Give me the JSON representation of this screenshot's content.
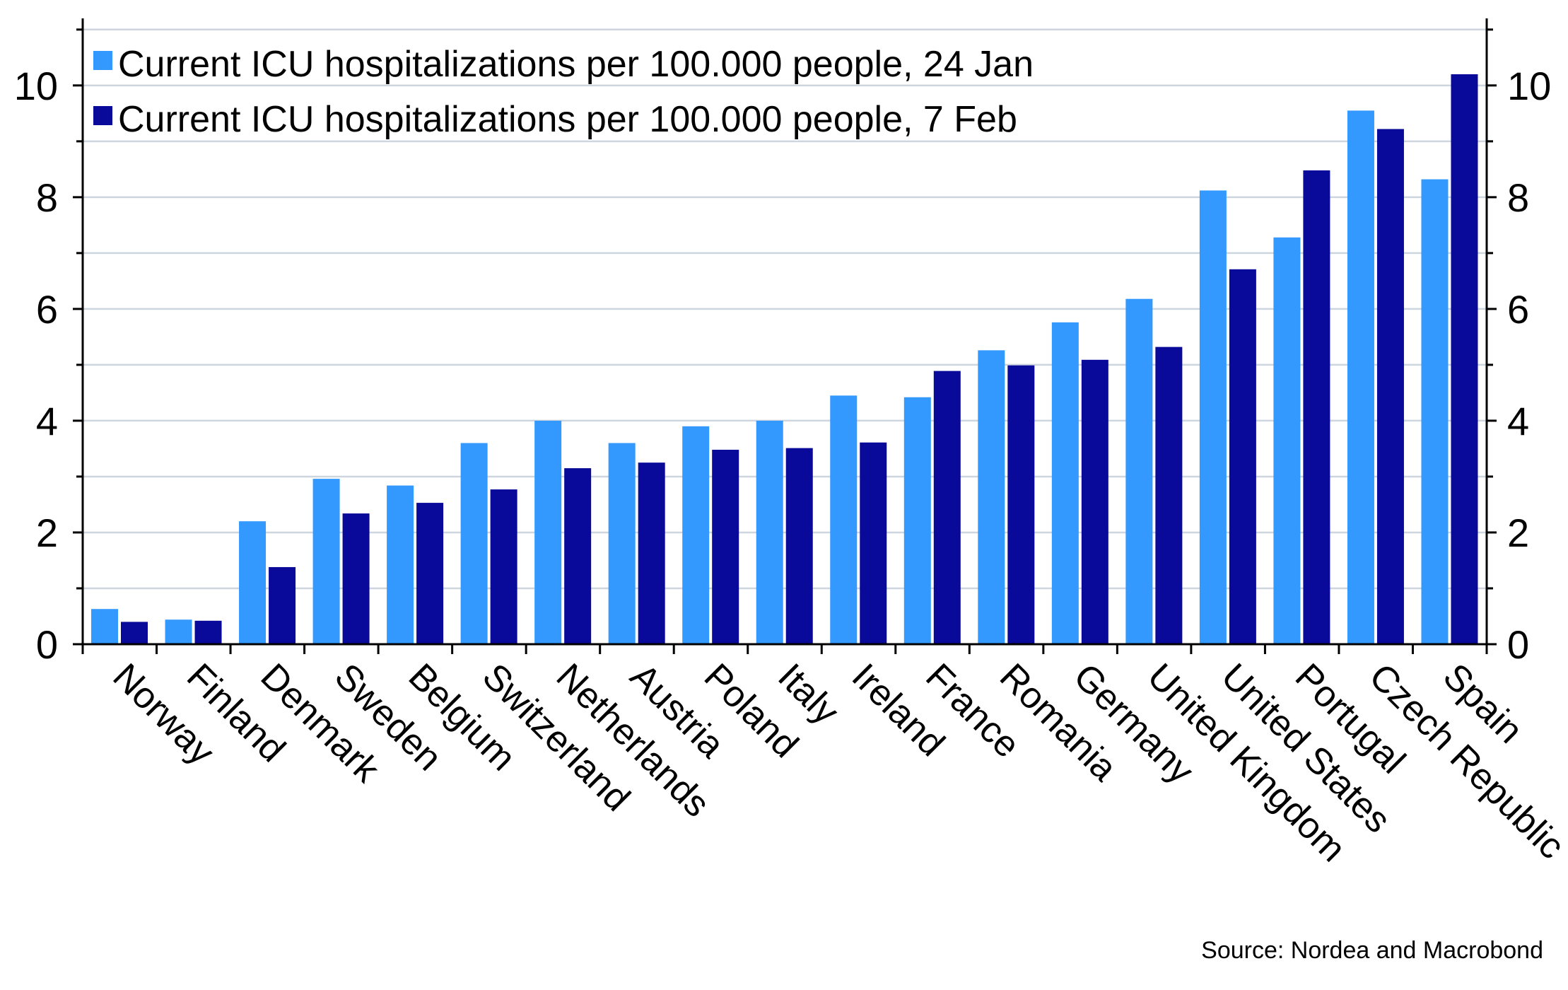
{
  "chart_data": {
    "type": "bar",
    "title": "",
    "xlabel": "",
    "ylabel": "",
    "ylim": [
      0,
      11.2
    ],
    "y_ticks": [
      "0",
      "2",
      "4",
      "6",
      "8",
      "10"
    ],
    "y_tick_values": [
      0,
      2,
      4,
      6,
      8,
      10
    ],
    "y_axis_right": true,
    "grid": true,
    "legend_position": "top-left",
    "categories": [
      "Norway",
      "Finland",
      "Denmark",
      "Sweden",
      "Belgium",
      "Switzerland",
      "Netherlands",
      "Austria",
      "Poland",
      "Italy",
      "Ireland",
      "France",
      "Romania",
      "Germany",
      "United Kingdom",
      "United States",
      "Portugal",
      "Czech Republic",
      "Spain"
    ],
    "series": [
      {
        "name": "Current ICU hospitalizations per 100.000 people, 24 Jan",
        "color": "#3399ff",
        "values": [
          0.63,
          0.44,
          2.2,
          2.96,
          2.84,
          3.6,
          4.0,
          3.6,
          3.9,
          4.0,
          4.45,
          4.42,
          5.26,
          5.76,
          6.18,
          8.12,
          7.28,
          9.55,
          8.32
        ]
      },
      {
        "name": "Current ICU hospitalizations per 100.000 people, 7 Feb",
        "color": "#0a0a9a",
        "values": [
          0.4,
          0.42,
          1.38,
          2.34,
          2.53,
          2.77,
          3.15,
          3.25,
          3.48,
          3.51,
          3.61,
          4.89,
          4.99,
          5.09,
          5.32,
          6.71,
          8.48,
          9.22,
          10.2
        ]
      }
    ],
    "source": "Source: Nordea and Macrobond"
  },
  "colors": {
    "grid": "#cdd5de",
    "axis": "#000000"
  }
}
